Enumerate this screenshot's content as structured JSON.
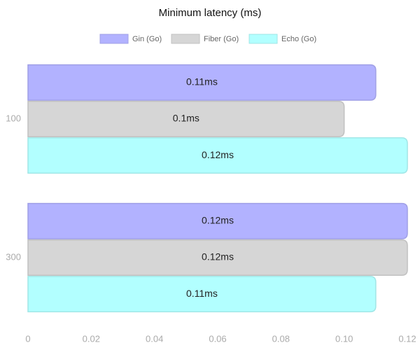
{
  "chart_data": {
    "type": "hbar",
    "title": "Minimum latency (ms)",
    "categories": [
      "100",
      "300"
    ],
    "series": [
      {
        "name": "Gin (Go)",
        "color": "#b2b2ff",
        "values": [
          0.11,
          0.12
        ],
        "value_labels": [
          "0.11ms",
          "0.12ms"
        ]
      },
      {
        "name": "Fiber (Go)",
        "color": "#d6d6d6",
        "values": [
          0.1,
          0.12
        ],
        "value_labels": [
          "0.1ms",
          "0.12ms"
        ]
      },
      {
        "name": "Echo (Go)",
        "color": "#b2ffff",
        "values": [
          0.12,
          0.11
        ],
        "value_labels": [
          "0.12ms",
          "0.11ms"
        ]
      }
    ],
    "xlim": [
      0,
      0.12
    ],
    "xticks": [
      0,
      0.02,
      0.04,
      0.06,
      0.08,
      {
        "value": 0.1,
        "label": "0.10"
      },
      0.12
    ],
    "grid": false,
    "legend": "top"
  }
}
